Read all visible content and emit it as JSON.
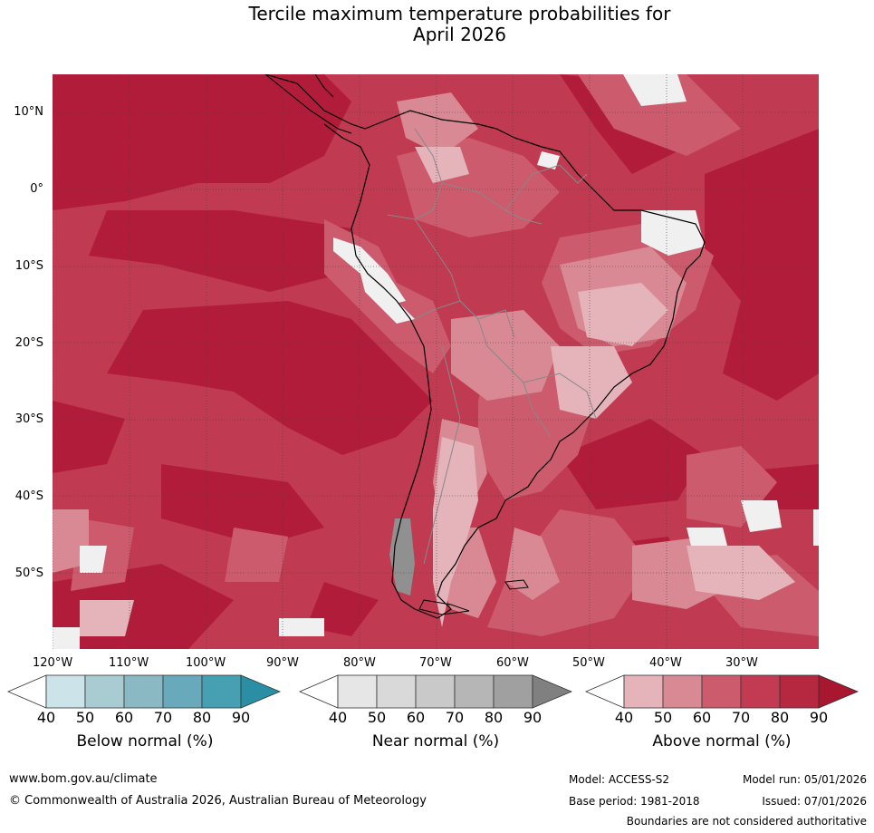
{
  "title_line1": "Tercile maximum temperature probabilities for",
  "title_line2": "April 2026",
  "map": {
    "lat_labels": [
      "10°N",
      "0°",
      "10°S",
      "20°S",
      "30°S",
      "40°S",
      "50°S"
    ],
    "lon_labels": [
      "120°W",
      "110°W",
      "100°W",
      "90°W",
      "80°W",
      "70°W",
      "60°W",
      "50°W",
      "40°W",
      "30°W"
    ],
    "colors": {
      "above90": "#b21c3b",
      "above80": "#c23b52",
      "above70": "#cc5c6d",
      "above60": "#d88994",
      "above50": "#e4b4ba",
      "above40": "#ffffff",
      "land_border": "#000000",
      "country_border": "#888888",
      "grid": "#444444"
    }
  },
  "colorbars": {
    "below": {
      "title": "Below normal (%)",
      "ticks": [
        "40",
        "50",
        "60",
        "70",
        "80",
        "90"
      ],
      "colors": [
        "#ffffff",
        "#cce3ea",
        "#a9cbd2",
        "#8ab8c3",
        "#68aabb",
        "#47a0b2",
        "#2a8fa5"
      ]
    },
    "near": {
      "title": "Near normal (%)",
      "ticks": [
        "40",
        "50",
        "60",
        "70",
        "80",
        "90"
      ],
      "colors": [
        "#ffffff",
        "#e6e6e6",
        "#d9d9d9",
        "#c9c9c9",
        "#b6b6b6",
        "#a0a0a0",
        "#808080"
      ]
    },
    "above": {
      "title": "Above normal (%)",
      "ticks": [
        "40",
        "50",
        "60",
        "70",
        "80",
        "90"
      ],
      "colors": [
        "#ffffff",
        "#e4b4ba",
        "#d88994",
        "#cc5c6d",
        "#c23b52",
        "#b6283f",
        "#a8162f"
      ]
    }
  },
  "footer": {
    "website": "www.bom.gov.au/climate",
    "copyright": "© Commonwealth of Australia 2026, Australian Bureau of Meteorology",
    "model": "Model: ACCESS-S2",
    "model_run": "Model run: 05/01/2026",
    "base_period": "Base period: 1981-2018",
    "issued": "Issued: 07/01/2026",
    "disclaimer": "Boundaries are not considered authoritative"
  }
}
